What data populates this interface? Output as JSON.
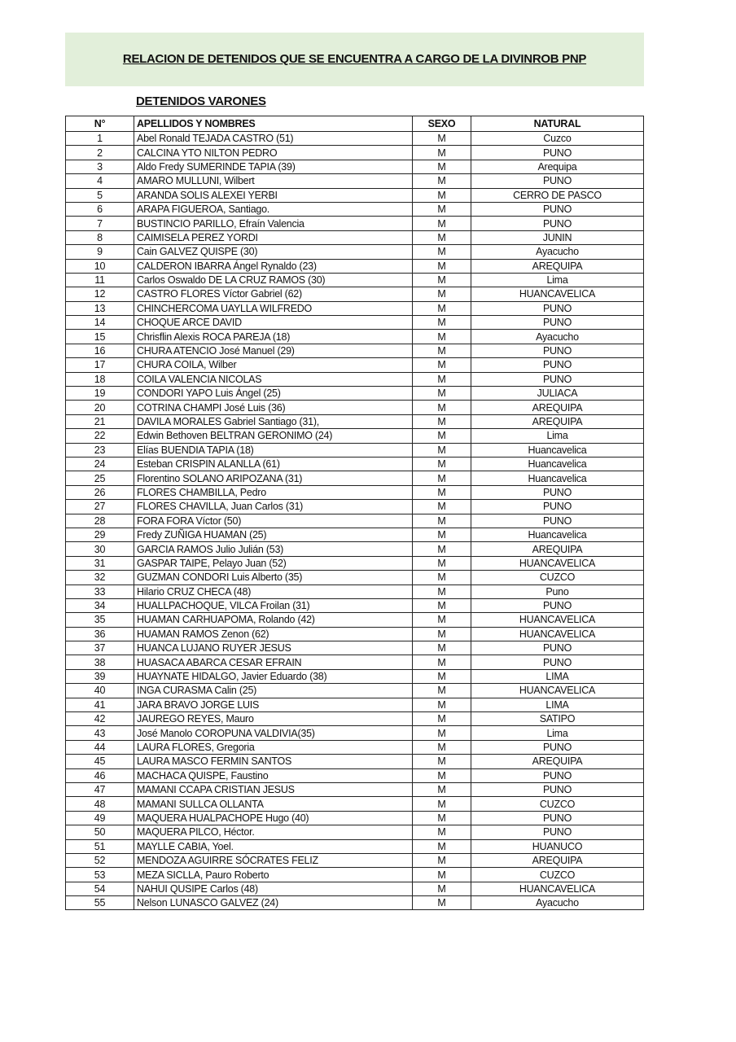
{
  "document": {
    "title": "RELACION DE DETENIDOS QUE SE ENCUENTRA A CARGO DE LA DIVINROB PNP",
    "subtitle": "DETENIDOS VARONES",
    "banner_color": "#e2efda"
  },
  "table": {
    "headers": [
      "N°",
      "APELLIDOS Y NOMBRES",
      "SEXO",
      "NATURAL"
    ],
    "rows": [
      [
        "1",
        "Abel Ronald TEJADA CASTRO (51)",
        "M",
        "Cuzco"
      ],
      [
        "2",
        " CALCINA YTO NILTON PEDRO",
        "M",
        "PUNO"
      ],
      [
        "3",
        "Aldo Fredy SUMERINDE TAPIA (39)",
        "M",
        "Arequipa"
      ],
      [
        "4",
        "AMARO MULLUNI, Wilbert",
        "M",
        "PUNO"
      ],
      [
        "5",
        "ARANDA SOLIS ALEXEI YERBI",
        "M",
        "CERRO DE PASCO"
      ],
      [
        "6",
        "ARAPA FIGUEROA, Santiago.",
        "M",
        "PUNO"
      ],
      [
        "7",
        "BUSTINCIO PARILLO, Efraín Valencia",
        "M",
        "PUNO"
      ],
      [
        "8",
        "CAIMISELA PEREZ YORDI",
        "M",
        "JUNIN"
      ],
      [
        "9",
        "Cain GALVEZ QUISPE (30)",
        "M",
        "Ayacucho"
      ],
      [
        "10",
        "CALDERON IBARRA Ángel Rynaldo (23)",
        "M",
        "AREQUIPA"
      ],
      [
        "11",
        "Carlos Oswaldo DE LA CRUZ RAMOS (30)",
        "M",
        "Lima"
      ],
      [
        "12",
        "CASTRO FLORES Víctor Gabriel (62)",
        "M",
        "HUANCAVELICA"
      ],
      [
        "13",
        "CHINCHERCOMA UAYLLA WILFREDO",
        "M",
        "PUNO"
      ],
      [
        "14",
        "CHOQUE ARCE DAVID",
        "M",
        "PUNO"
      ],
      [
        "15",
        "Chrisflin Alexis ROCA PAREJA (18)",
        "M",
        "Ayacucho"
      ],
      [
        "16",
        "CHURA ATENCIO José Manuel (29)",
        "M",
        "PUNO"
      ],
      [
        "17",
        "CHURA COILA, Wilber",
        "M",
        "PUNO"
      ],
      [
        "18",
        "COILA VALENCIA NICOLAS",
        "M",
        "PUNO"
      ],
      [
        "19",
        "CONDORI YAPO Luis Ángel (25)",
        "M",
        "JULIACA"
      ],
      [
        "20",
        "COTRINA CHAMPI José Luis (36)",
        "M",
        "AREQUIPA"
      ],
      [
        "21",
        "DAVILA MORALES Gabriel Santiago (31),",
        "M",
        "AREQUIPA"
      ],
      [
        "22",
        "Edwin Bethoven BELTRAN GERONIMO (24)",
        "M",
        "Lima"
      ],
      [
        "23",
        "Elías BUENDIA TAPIA (18)",
        "M",
        "Huancavelica"
      ],
      [
        "24",
        "Esteban CRISPIN  ALANLLA (61)",
        "M",
        "Huancavelica"
      ],
      [
        "25",
        "Florentino SOLANO ARIPOZANA (31)",
        "M",
        "Huancavelica"
      ],
      [
        "26",
        "FLORES CHAMBILLA, Pedro",
        "M",
        "PUNO"
      ],
      [
        "27",
        "FLORES CHAVILLA, Juan Carlos (31)",
        "M",
        "PUNO"
      ],
      [
        "28",
        "FORA FORA Víctor (50)",
        "M",
        "PUNO"
      ],
      [
        "29",
        "Fredy ZUÑIGA HUAMAN (25)",
        "M",
        "Huancavelica"
      ],
      [
        "30",
        "GARCIA RAMOS Julio Julián (53)",
        "M",
        "AREQUIPA"
      ],
      [
        "31",
        "GASPAR TAIPE, Pelayo Juan (52)",
        "M",
        "HUANCAVELICA"
      ],
      [
        "32",
        "GUZMAN CONDORI Luis Alberto (35)",
        "M",
        "CUZCO"
      ],
      [
        "33",
        "Hilario CRUZ CHECA (48)",
        "M",
        "Puno"
      ],
      [
        "34",
        "HUALLPACHOQUE, VILCA Froilan (31)",
        "M",
        "PUNO"
      ],
      [
        "35",
        "HUAMAN CARHUAPOMA, Rolando (42)",
        "M",
        "HUANCAVELICA"
      ],
      [
        "36",
        "HUAMAN RAMOS Zenon (62)",
        "M",
        "HUANCAVELICA"
      ],
      [
        "37",
        "HUANCA LUJANO RUYER JESUS",
        "M",
        "PUNO"
      ],
      [
        "38",
        "HUASACA ABARCA CESAR EFRAIN",
        "M",
        "PUNO"
      ],
      [
        "39",
        "HUAYNATE HIDALGO, Javier Eduardo (38)",
        "M",
        "LIMA"
      ],
      [
        "40",
        "INGA CURASMA Calin (25)",
        "M",
        "HUANCAVELICA"
      ],
      [
        "41",
        "JARA BRAVO JORGE LUIS",
        "M",
        "LIMA"
      ],
      [
        "42",
        "JAUREGO REYES, Mauro",
        "M",
        "SATIPO"
      ],
      [
        "43",
        "José Manolo COROPUNA VALDIVIA(35)",
        "M",
        "Lima"
      ],
      [
        "44",
        "LAURA FLORES, Gregoria",
        "M",
        "PUNO"
      ],
      [
        "45",
        "LAURA MASCO FERMIN SANTOS",
        "M",
        "AREQUIPA"
      ],
      [
        "46",
        "MACHACA QUISPE, Faustino",
        "M",
        "PUNO"
      ],
      [
        "47",
        "MAMANI CCAPA CRISTIAN JESUS",
        "M",
        "PUNO"
      ],
      [
        "48",
        "MAMANI SULLCA OLLANTA",
        "M",
        "CUZCO"
      ],
      [
        "49",
        "MAQUERA HUALPACHOPE Hugo (40)",
        "M",
        "PUNO"
      ],
      [
        "50",
        "MAQUERA PILCO, Héctor.",
        "M",
        "PUNO"
      ],
      [
        "51",
        "MAYLLE CABIA, Yoel.",
        "M",
        "HUANUCO"
      ],
      [
        "52",
        "MENDOZA AGUIRRE SÓCRATES FELIZ",
        "M",
        "AREQUIPA"
      ],
      [
        "53",
        "MEZA SICLLA, Pauro Roberto",
        "M",
        "CUZCO"
      ],
      [
        "54",
        "NAHUI QUSIPE Carlos (48)",
        "M",
        "HUANCAVELICA"
      ],
      [
        "55",
        "Nelson LUNASCO GALVEZ (24)",
        "M",
        "Ayacucho"
      ]
    ]
  }
}
